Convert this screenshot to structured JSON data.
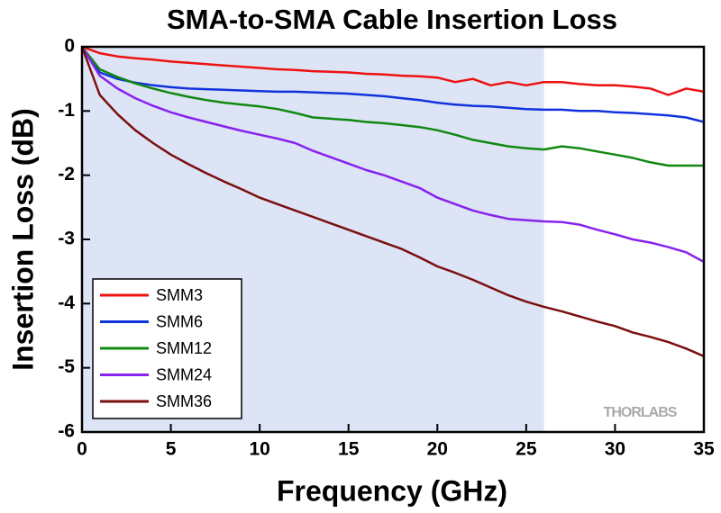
{
  "chart_data": {
    "type": "line",
    "title": "SMA-to-SMA Cable Insertion Loss",
    "xlabel": "Frequency (GHz)",
    "ylabel": "Insertion Loss (dB)",
    "watermark": "THORLABS",
    "xlim": [
      0,
      35
    ],
    "ylim": [
      -6,
      0
    ],
    "xticks": [
      0,
      5,
      10,
      15,
      20,
      25,
      30,
      35
    ],
    "yticks": [
      0,
      -1,
      -2,
      -3,
      -4,
      -5,
      -6
    ],
    "shaded_xrange": [
      0,
      26
    ],
    "shade_color": "#dce4f5",
    "legend": "lower left",
    "x": [
      0,
      1,
      2,
      3,
      4,
      5,
      6,
      7,
      8,
      9,
      10,
      11,
      12,
      13,
      14,
      15,
      16,
      17,
      18,
      19,
      20,
      21,
      22,
      23,
      24,
      25,
      26,
      27,
      28,
      29,
      30,
      31,
      32,
      33,
      34,
      35
    ],
    "series": [
      {
        "name": "SMM3",
        "color": "#ee1111",
        "values": [
          0,
          -0.1,
          -0.15,
          -0.18,
          -0.2,
          -0.23,
          -0.25,
          -0.27,
          -0.29,
          -0.31,
          -0.33,
          -0.35,
          -0.36,
          -0.38,
          -0.39,
          -0.4,
          -0.42,
          -0.43,
          -0.45,
          -0.46,
          -0.48,
          -0.55,
          -0.5,
          -0.6,
          -0.55,
          -0.6,
          -0.55,
          -0.55,
          -0.58,
          -0.6,
          -0.6,
          -0.62,
          -0.65,
          -0.75,
          -0.65,
          -0.7
        ]
      },
      {
        "name": "SMM6",
        "color": "#1133dd",
        "values": [
          0,
          -0.4,
          -0.5,
          -0.56,
          -0.6,
          -0.63,
          -0.65,
          -0.66,
          -0.67,
          -0.68,
          -0.69,
          -0.7,
          -0.7,
          -0.71,
          -0.72,
          -0.73,
          -0.75,
          -0.77,
          -0.8,
          -0.83,
          -0.87,
          -0.9,
          -0.92,
          -0.93,
          -0.95,
          -0.97,
          -0.98,
          -0.98,
          -1.0,
          -1.0,
          -1.02,
          -1.03,
          -1.05,
          -1.07,
          -1.1,
          -1.17
        ]
      },
      {
        "name": "SMM12",
        "color": "#118811",
        "values": [
          0,
          -0.35,
          -0.47,
          -0.57,
          -0.65,
          -0.72,
          -0.78,
          -0.83,
          -0.87,
          -0.9,
          -0.93,
          -0.97,
          -1.03,
          -1.1,
          -1.12,
          -1.14,
          -1.17,
          -1.19,
          -1.22,
          -1.25,
          -1.3,
          -1.37,
          -1.45,
          -1.5,
          -1.55,
          -1.58,
          -1.6,
          -1.55,
          -1.58,
          -1.63,
          -1.68,
          -1.73,
          -1.8,
          -1.85,
          -1.85,
          -1.85
        ]
      },
      {
        "name": "SMM24",
        "color": "#8822ee",
        "values": [
          0,
          -0.45,
          -0.65,
          -0.8,
          -0.92,
          -1.02,
          -1.1,
          -1.17,
          -1.24,
          -1.31,
          -1.37,
          -1.43,
          -1.5,
          -1.62,
          -1.72,
          -1.82,
          -1.92,
          -2.0,
          -2.1,
          -2.2,
          -2.35,
          -2.45,
          -2.55,
          -2.62,
          -2.68,
          -2.7,
          -2.72,
          -2.73,
          -2.77,
          -2.85,
          -2.92,
          -3.0,
          -3.05,
          -3.12,
          -3.2,
          -3.35
        ]
      },
      {
        "name": "SMM36",
        "color": "#7a0f0f",
        "values": [
          0,
          -0.75,
          -1.05,
          -1.3,
          -1.5,
          -1.68,
          -1.83,
          -1.97,
          -2.1,
          -2.22,
          -2.35,
          -2.45,
          -2.55,
          -2.65,
          -2.75,
          -2.85,
          -2.95,
          -3.05,
          -3.15,
          -3.28,
          -3.42,
          -3.52,
          -3.63,
          -3.75,
          -3.87,
          -3.97,
          -4.05,
          -4.12,
          -4.2,
          -4.28,
          -4.35,
          -4.45,
          -4.52,
          -4.6,
          -4.7,
          -4.82
        ]
      }
    ]
  }
}
